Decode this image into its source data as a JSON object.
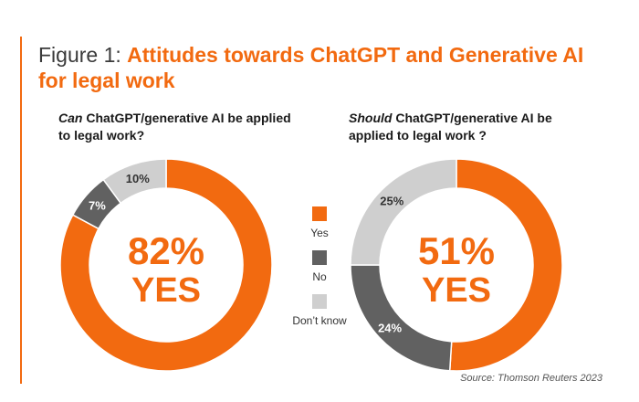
{
  "title": {
    "prefix": "Figure 1:",
    "main": "Attitudes towards ChatGPT and Generative AI for legal work"
  },
  "source": "Source: Thomson Reuters 2023",
  "colors": {
    "yes": "#f26a10",
    "no": "#616161",
    "dont_know": "#cfcfcf"
  },
  "legend": {
    "items": [
      {
        "label": "Yes",
        "color": "#f26a10"
      },
      {
        "label": "No",
        "color": "#616161"
      },
      {
        "label": "Don’t know",
        "color": "#cfcfcf"
      }
    ]
  },
  "chart_data": [
    {
      "type": "pie",
      "variant": "donut",
      "title_emphasis": "Can",
      "title_rest": " ChatGPT/generative AI be applied to legal work?",
      "center_value": "82%",
      "center_label": "YES",
      "categories": [
        "Yes",
        "No",
        "Don’t know"
      ],
      "values": [
        82,
        7,
        10
      ],
      "value_labels": [
        "",
        "7%",
        "10%"
      ]
    },
    {
      "type": "pie",
      "variant": "donut",
      "title_emphasis": "Should",
      "title_rest": " ChatGPT/generative AI be applied to legal work ?",
      "center_value": "51%",
      "center_label": "YES",
      "categories": [
        "Yes",
        "No",
        "Don’t know"
      ],
      "values": [
        51,
        24,
        25
      ],
      "value_labels": [
        "",
        "24%",
        "25%"
      ]
    }
  ]
}
